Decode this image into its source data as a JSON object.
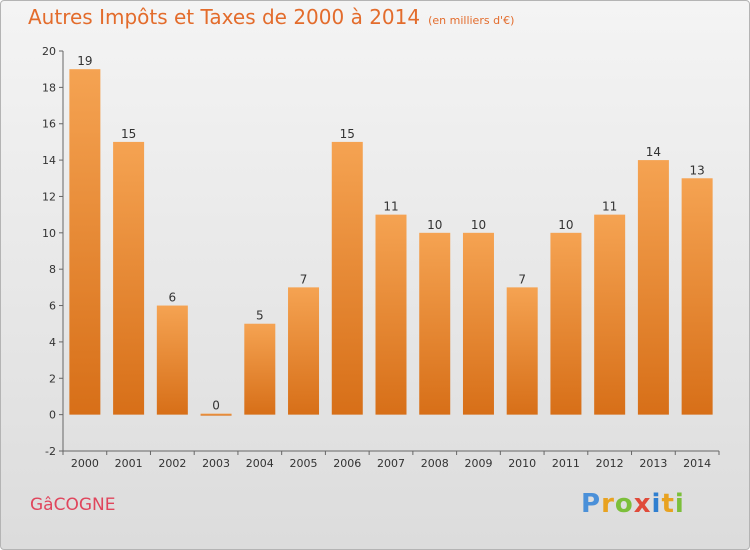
{
  "title": "Autres Impôts et Taxes de 2000 à 2014",
  "subtitle": "(en milliers d'€)",
  "location": "GâCOGNE",
  "logo": {
    "text": "Proxiti",
    "letters": [
      "P",
      "r",
      "o",
      "x",
      "i",
      "t",
      "i"
    ],
    "colors": [
      "#4a90d9",
      "#e8a220",
      "#7cbf3a",
      "#e04a3a",
      "#2f7fd0",
      "#e8a220",
      "#7cbf3a"
    ]
  },
  "colors": {
    "bar_top": "#f5a352",
    "bar_bottom": "#d76f18",
    "title": "#e36c2c",
    "location": "#e0455c"
  },
  "chart_data": {
    "type": "bar",
    "title": "Autres Impôts et Taxes de 2000 à 2014",
    "subtitle": "(en milliers d'€)",
    "categories": [
      "2000",
      "2001",
      "2002",
      "2003",
      "2004",
      "2005",
      "2006",
      "2007",
      "2008",
      "2009",
      "2010",
      "2011",
      "2012",
      "2013",
      "2014"
    ],
    "values": [
      19,
      15,
      6,
      0,
      5,
      7,
      15,
      11,
      10,
      10,
      7,
      10,
      11,
      14,
      13
    ],
    "data_labels": [
      "19",
      "15",
      "6",
      "0",
      "5",
      "7",
      "15",
      "11",
      "10",
      "10",
      "7",
      "10",
      "11",
      "14",
      "13"
    ],
    "ylim": [
      -2,
      20
    ],
    "yticks": [
      -2,
      0,
      2,
      4,
      6,
      8,
      10,
      12,
      14,
      16,
      18,
      20
    ],
    "xlabel": "",
    "ylabel": "",
    "grid": false,
    "legend": "none"
  }
}
